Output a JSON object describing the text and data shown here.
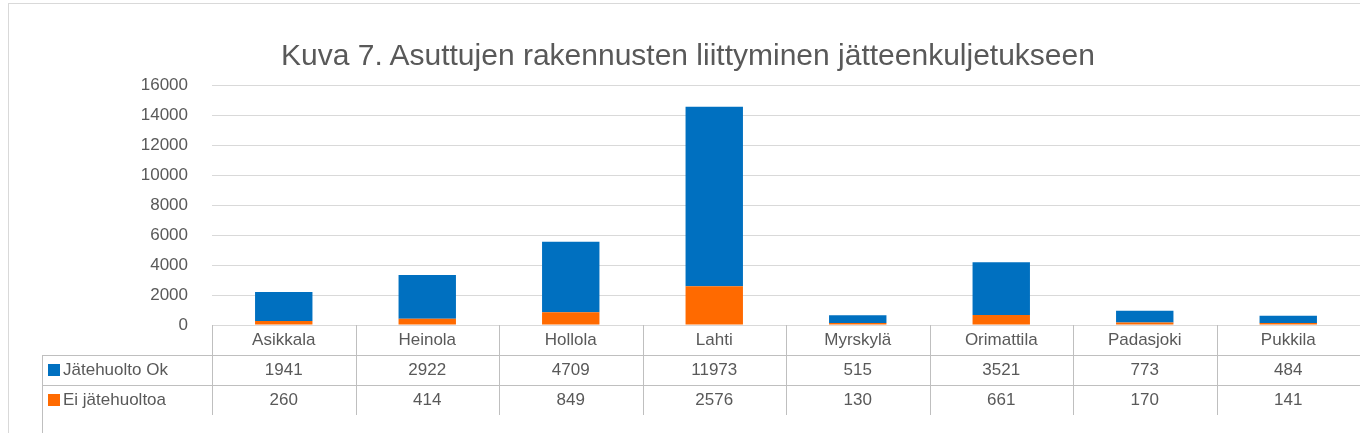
{
  "chart_data": {
    "type": "bar",
    "title": "Kuva 7. Asuttujen rakennusten liittyminen jätteenkuljetukseen",
    "categories": [
      "Asikkala",
      "Heinola",
      "Hollola",
      "Lahti",
      "Myrskylä",
      "Orimattila",
      "Padasjoki",
      "Pukkila"
    ],
    "stacked": true,
    "ylim": [
      0,
      16000
    ],
    "yticks": [
      0,
      2000,
      4000,
      6000,
      8000,
      10000,
      12000,
      14000,
      16000
    ],
    "grid": "y",
    "legend": "bottom",
    "data_labels": true,
    "series": [
      {
        "name": "Ei jätehuoltoa",
        "color": "#ff6a00",
        "values": [
          260,
          414,
          849,
          2576,
          130,
          661,
          170,
          141
        ]
      },
      {
        "name": "Jätehuolto Ok",
        "color": "#0070c0",
        "values": [
          1941,
          2922,
          4709,
          11973,
          515,
          3521,
          773,
          484
        ]
      }
    ]
  }
}
